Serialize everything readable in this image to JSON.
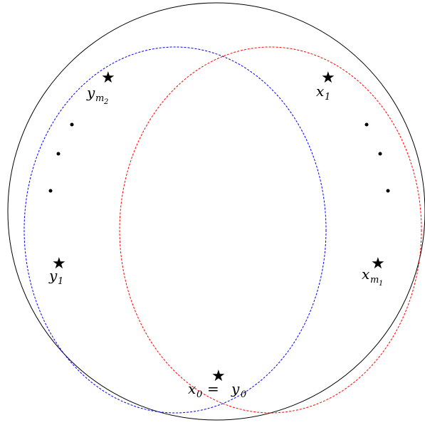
{
  "diagram": {
    "colors": {
      "outer_circle": "#000000",
      "blue_ellipse": "#0000ff",
      "red_ellipse": "#ff0000",
      "points": "#000000"
    },
    "labels": {
      "x1": {
        "base": "x",
        "sub": "1"
      },
      "xm1": {
        "base": "x",
        "sub": "m",
        "subsub": "1"
      },
      "y1": {
        "base": "y",
        "sub": "1"
      },
      "ym2": {
        "base": "y",
        "sub": "m",
        "subsub": "2"
      },
      "x0_left": "x",
      "x0_left_sub": "0",
      "equals": "=",
      "y0_right": "y",
      "y0_right_sub": "0"
    },
    "star_glyph": "★",
    "icons": [
      "star-icon",
      "dot-icon"
    ]
  }
}
